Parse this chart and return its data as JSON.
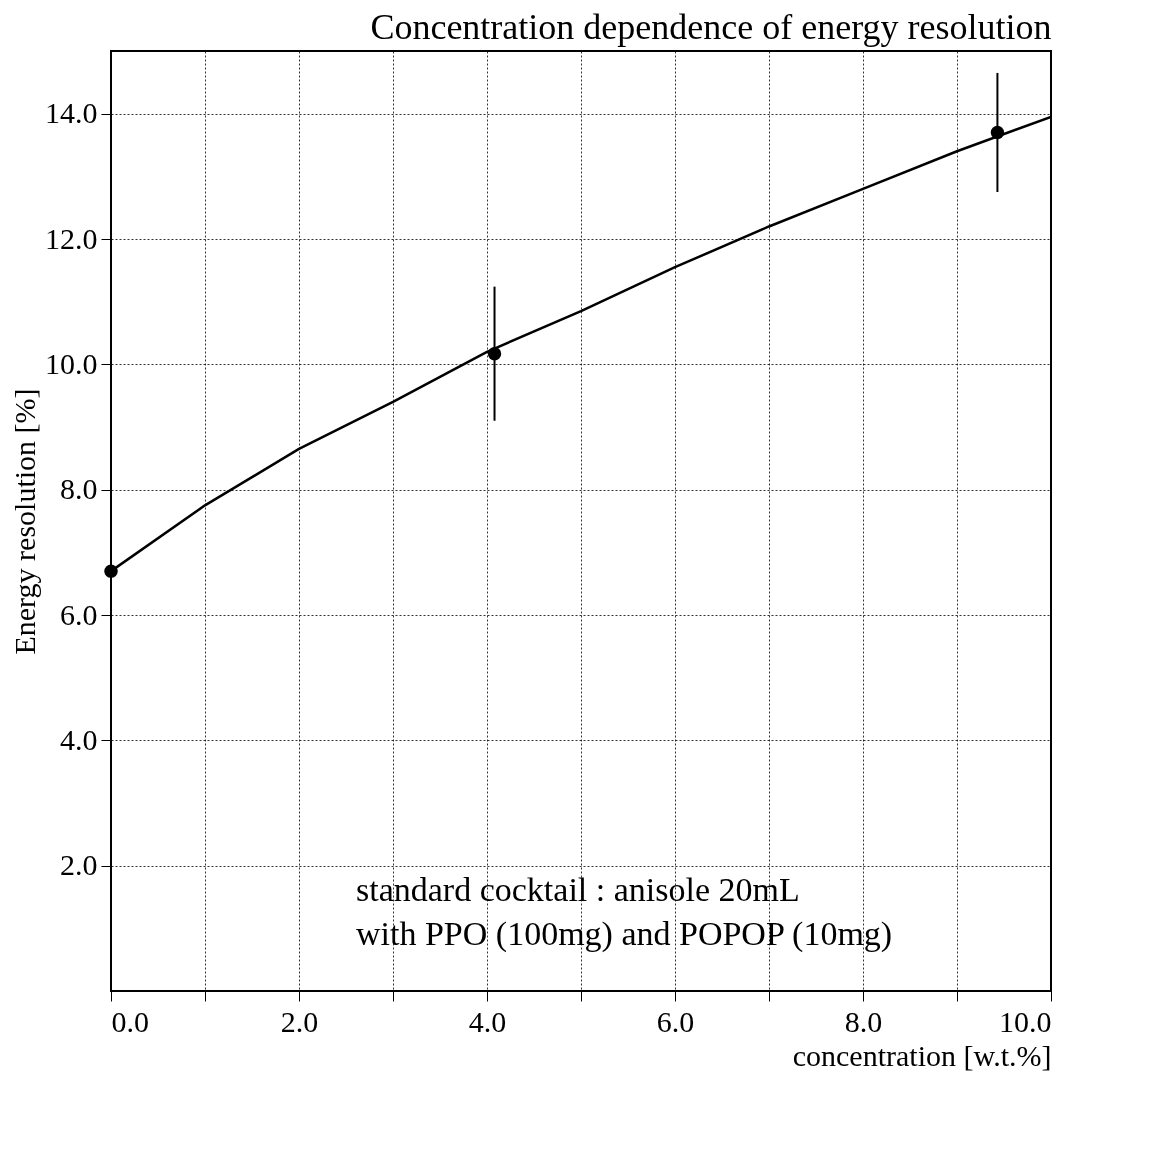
{
  "chart_data": {
    "type": "scatter",
    "title": "Concentration dependence of energy resolution",
    "xlabel": "concentration [w.t.%]",
    "ylabel": "Energy resolution [%]",
    "xlim": [
      0,
      10
    ],
    "ylim": [
      0,
      15
    ],
    "xticks": [
      {
        "value": 0,
        "label": "0.0"
      },
      {
        "value": 1,
        "label": null
      },
      {
        "value": 2,
        "label": "2.0"
      },
      {
        "value": 3,
        "label": null
      },
      {
        "value": 4,
        "label": "4.0"
      },
      {
        "value": 5,
        "label": null
      },
      {
        "value": 6,
        "label": "6.0"
      },
      {
        "value": 7,
        "label": null
      },
      {
        "value": 8,
        "label": "8.0"
      },
      {
        "value": 9,
        "label": null
      },
      {
        "value": 10,
        "label": "10.0"
      }
    ],
    "yticks": [
      {
        "value": 2,
        "label": "2.0"
      },
      {
        "value": 4,
        "label": "4.0"
      },
      {
        "value": 6,
        "label": "6.0"
      },
      {
        "value": 8,
        "label": "8.0"
      },
      {
        "value": 10,
        "label": "10.0"
      },
      {
        "value": 12,
        "label": "12.0"
      },
      {
        "value": 14,
        "label": "14.0"
      }
    ],
    "grid": true,
    "series": [
      {
        "color": "#000000",
        "marker": "circle",
        "x": [
          0,
          4.08,
          9.43
        ],
        "values": [
          6.7,
          10.17,
          13.7
        ],
        "errors": [
          1.1,
          1.07,
          0.95
        ]
      },
      {
        "type": "line",
        "marker": "none",
        "color": "#000000",
        "x": [
          0,
          1,
          2,
          3,
          4,
          5,
          6,
          7,
          8,
          9,
          10
        ],
        "values": [
          6.7,
          7.75,
          8.65,
          9.4,
          10.2,
          10.85,
          11.55,
          12.2,
          12.8,
          13.4,
          13.95
        ]
      }
    ],
    "annotations": [
      "standard cocktail : anisole 20mL",
      "with PPO (100mg) and POPOP (10mg)"
    ]
  }
}
